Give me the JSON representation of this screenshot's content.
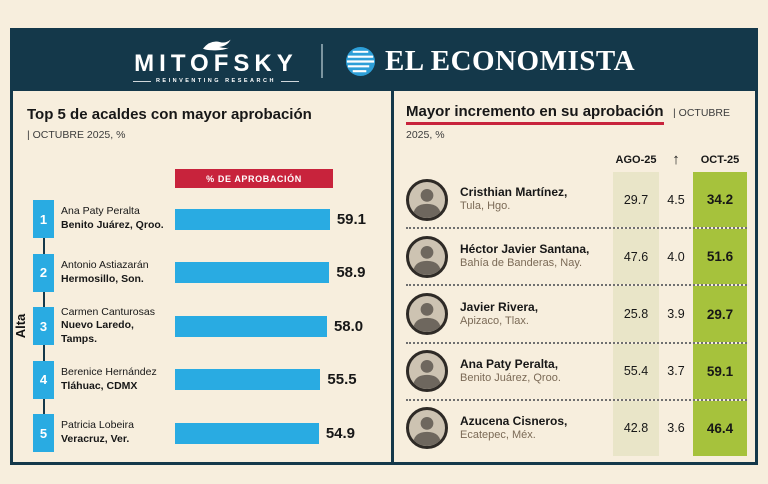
{
  "colors": {
    "navy": "#14384a",
    "bar_blue": "#29abe2",
    "accent_red": "#c8233c",
    "oct_green": "#a6c23c",
    "ago_beige": "#e9e5c8",
    "background_cream": "#f7eedd"
  },
  "header": {
    "mitofsky": "MITOFSKY",
    "mitofsky_tagline": "REINVENTING RESEARCH",
    "economista": "EL ECONOMISTA"
  },
  "left_panel": {
    "title": "Top 5 de acaldes con mayor aprobación",
    "subtitle": "| OCTUBRE 2025, %",
    "bar_header": "% DE APROBACIÓN",
    "axis_label": "Alta",
    "rows": [
      {
        "rank": "1",
        "name": "Ana Paty Peralta",
        "city": "Benito Juárez, Qroo.",
        "value": "59.1"
      },
      {
        "rank": "2",
        "name": "Antonio Astiazarán",
        "city": "Hermosillo, Son.",
        "value": "58.9"
      },
      {
        "rank": "3",
        "name": "Carmen Canturosas",
        "city": "Nuevo Laredo, Tamps.",
        "value": "58.0"
      },
      {
        "rank": "4",
        "name": "Berenice Hernández",
        "city": "Tláhuac, CDMX",
        "value": "55.5"
      },
      {
        "rank": "5",
        "name": "Patricia Lobeira",
        "city": "Veracruz, Ver.",
        "value": "54.9"
      }
    ]
  },
  "right_panel": {
    "title": "Mayor incremento en su aprobación",
    "subtitle": "| OCTUBRE 2025, %",
    "col_ago": "AGO-25",
    "col_arrow": "↑",
    "col_oct": "OCT-25",
    "rows": [
      {
        "name": "Cristhian Martínez,",
        "city": "Tula, Hgo.",
        "ago": "29.7",
        "delta": "4.5",
        "oct": "34.2"
      },
      {
        "name": "Héctor Javier Santana,",
        "city": "Bahía de Banderas, Nay.",
        "ago": "47.6",
        "delta": "4.0",
        "oct": "51.6"
      },
      {
        "name": "Javier Rivera,",
        "city": "Apizaco, Tlax.",
        "ago": "25.8",
        "delta": "3.9",
        "oct": "29.7"
      },
      {
        "name": "Ana Paty Peralta,",
        "city": "Benito Juárez, Qroo.",
        "ago": "55.4",
        "delta": "3.7",
        "oct": "59.1"
      },
      {
        "name": "Azucena Cisneros,",
        "city": "Ecatepec, Méx.",
        "ago": "42.8",
        "delta": "3.6",
        "oct": "46.4"
      }
    ]
  },
  "chart_data": [
    {
      "type": "bar",
      "orientation": "horizontal",
      "title": "Top 5 de acaldes con mayor aprobación",
      "subtitle": "OCTUBRE 2025, %",
      "value_label": "% DE APROBACIÓN",
      "group_label": "Alta",
      "categories": [
        "Ana Paty Peralta — Benito Juárez, Qroo.",
        "Antonio Astiazarán — Hermosillo, Son.",
        "Carmen Canturosas — Nuevo Laredo, Tamps.",
        "Berenice Hernández — Tláhuac, CDMX",
        "Patricia Lobeira — Veracruz, Ver."
      ],
      "values": [
        59.1,
        58.9,
        58.0,
        55.5,
        54.9
      ],
      "xlim": [
        0,
        60
      ],
      "grid": false,
      "legend": false
    },
    {
      "type": "table",
      "title": "Mayor incremento en su aprobación",
      "subtitle": "OCTUBRE 2025, %",
      "columns": [
        "AGO-25",
        "incremento",
        "OCT-25"
      ],
      "rows": [
        {
          "name": "Cristhian Martínez",
          "city": "Tula, Hgo.",
          "ago_25": 29.7,
          "incremento": 4.5,
          "oct_25": 34.2
        },
        {
          "name": "Héctor Javier Santana",
          "city": "Bahía de Banderas, Nay.",
          "ago_25": 47.6,
          "incremento": 4.0,
          "oct_25": 51.6
        },
        {
          "name": "Javier Rivera",
          "city": "Apizaco, Tlax.",
          "ago_25": 25.8,
          "incremento": 3.9,
          "oct_25": 29.7
        },
        {
          "name": "Ana Paty Peralta",
          "city": "Benito Juárez, Qroo.",
          "ago_25": 55.4,
          "incremento": 3.7,
          "oct_25": 59.1
        },
        {
          "name": "Azucena Cisneros",
          "city": "Ecatepec, Méx.",
          "ago_25": 42.8,
          "incremento": 3.6,
          "oct_25": 46.4
        }
      ]
    }
  ]
}
